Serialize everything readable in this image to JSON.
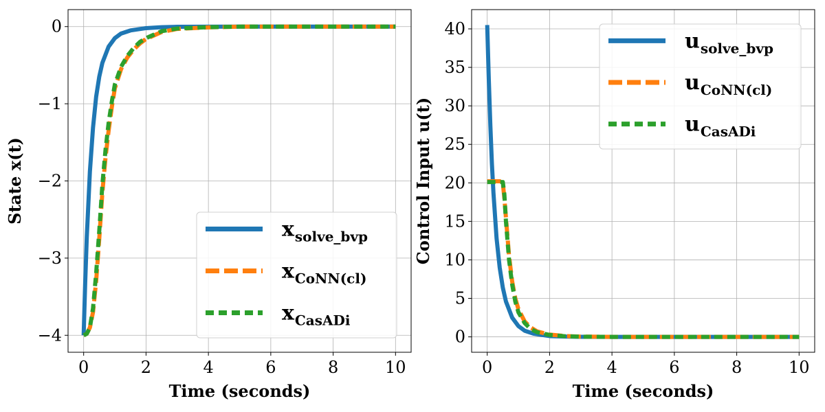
{
  "chart_data": [
    {
      "type": "line",
      "title": "",
      "xlabel": "Time (seconds)",
      "ylabel": "State x(t)",
      "xlim": [
        -0.5,
        10.5
      ],
      "ylim": [
        -4.22,
        0.22
      ],
      "xticks": [
        0,
        2,
        4,
        6,
        8,
        10
      ],
      "yticks": [
        0,
        -1,
        -2,
        -3,
        -4
      ],
      "xtick_labels": [
        "0",
        "2",
        "4",
        "6",
        "8",
        "10"
      ],
      "ytick_labels": [
        "0",
        "−1",
        "−2",
        "−3",
        "−4"
      ],
      "grid": true,
      "legend_location": "lower-right",
      "series": [
        {
          "name": "x_solve_bvp",
          "legend_main": "x",
          "legend_sub": "solve_bvp",
          "color": "#1f77b4",
          "style": "solid",
          "x": [
            0,
            0.05,
            0.1,
            0.2,
            0.3,
            0.4,
            0.5,
            0.6,
            0.8,
            1.0,
            1.2,
            1.5,
            2.0,
            2.5,
            3.0,
            4.0,
            5.0,
            10.0
          ],
          "y": [
            -4.0,
            -3.31,
            -2.73,
            -1.88,
            -1.31,
            -0.91,
            -0.65,
            -0.47,
            -0.26,
            -0.15,
            -0.09,
            -0.05,
            -0.02,
            -0.008,
            -0.003,
            -0.001,
            0,
            0
          ]
        },
        {
          "name": "x_CoNN(cl)",
          "legend_main": "x",
          "legend_sub": "CoNN(cl)",
          "color": "#ff7f0e",
          "style": "dashed",
          "x": [
            0,
            0.1,
            0.2,
            0.3,
            0.4,
            0.5,
            0.6,
            0.7,
            0.8,
            0.9,
            1.0,
            1.2,
            1.4,
            1.6,
            1.8,
            2.0,
            2.5,
            3.0,
            4.0,
            5.0,
            10.0
          ],
          "y": [
            -4.0,
            -3.98,
            -3.9,
            -3.7,
            -3.3,
            -2.75,
            -2.15,
            -1.7,
            -1.35,
            -1.05,
            -0.8,
            -0.55,
            -0.4,
            -0.3,
            -0.22,
            -0.16,
            -0.07,
            -0.03,
            -0.01,
            0,
            0
          ]
        },
        {
          "name": "x_CasADi",
          "legend_main": "x",
          "legend_sub": "CasADi",
          "color": "#2ca02c",
          "style": "dotted",
          "x": [
            0,
            0.1,
            0.2,
            0.3,
            0.4,
            0.5,
            0.6,
            0.7,
            0.8,
            0.9,
            1.0,
            1.2,
            1.4,
            1.6,
            1.8,
            2.0,
            2.5,
            3.0,
            4.0,
            5.0,
            10.0
          ],
          "y": [
            -4.0,
            -3.98,
            -3.9,
            -3.65,
            -3.2,
            -2.65,
            -2.05,
            -1.6,
            -1.25,
            -0.98,
            -0.75,
            -0.52,
            -0.38,
            -0.28,
            -0.2,
            -0.15,
            -0.06,
            -0.025,
            -0.008,
            0,
            0
          ]
        }
      ]
    },
    {
      "type": "line",
      "title": "",
      "xlabel": "Time (seconds)",
      "ylabel": "Control Input u(t)",
      "xlim": [
        -0.5,
        10.5
      ],
      "ylim": [
        -2.0,
        42.5
      ],
      "xticks": [
        0,
        2,
        4,
        6,
        8,
        10
      ],
      "yticks": [
        0,
        5,
        10,
        15,
        20,
        25,
        30,
        35,
        40
      ],
      "xtick_labels": [
        "0",
        "2",
        "4",
        "6",
        "8",
        "10"
      ],
      "ytick_labels": [
        "0",
        "5",
        "10",
        "15",
        "20",
        "25",
        "30",
        "35",
        "40"
      ],
      "grid": true,
      "legend_location": "upper-right",
      "series": [
        {
          "name": "u_solve_bvp",
          "legend_main": "u",
          "legend_sub": "solve_bvp",
          "color": "#1f77b4",
          "style": "solid",
          "x": [
            0,
            0.05,
            0.1,
            0.15,
            0.2,
            0.3,
            0.4,
            0.5,
            0.6,
            0.8,
            1.0,
            1.2,
            1.5,
            2.0,
            2.5,
            3.0,
            4.0,
            10.0
          ],
          "y": [
            40.5,
            33.5,
            27.5,
            22.5,
            18.7,
            12.8,
            9.0,
            6.4,
            4.6,
            2.5,
            1.4,
            0.8,
            0.4,
            0.1,
            0.04,
            0.01,
            0,
            0
          ]
        },
        {
          "name": "u_CoNN(cl)",
          "legend_main": "u",
          "legend_sub": "CoNN(cl)",
          "color": "#ff7f0e",
          "style": "dashed",
          "x": [
            0,
            0.1,
            0.2,
            0.3,
            0.4,
            0.45,
            0.5,
            0.55,
            0.6,
            0.7,
            0.8,
            0.9,
            1.0,
            1.2,
            1.4,
            1.6,
            2.0,
            2.5,
            3.0,
            4.0,
            10.0
          ],
          "y": [
            20.2,
            20.2,
            20.2,
            20.2,
            20.2,
            20.2,
            20.0,
            18.0,
            15.5,
            10.5,
            7.2,
            5.0,
            3.6,
            2.0,
            1.2,
            0.7,
            0.3,
            0.1,
            0.03,
            0,
            0
          ]
        },
        {
          "name": "u_CasADi",
          "legend_main": "u",
          "legend_sub": "CasADi",
          "color": "#2ca02c",
          "style": "dotted",
          "x": [
            0,
            0.1,
            0.2,
            0.3,
            0.4,
            0.5,
            0.55,
            0.6,
            0.7,
            0.8,
            0.9,
            1.0,
            1.2,
            1.4,
            1.6,
            2.0,
            2.5,
            3.0,
            4.0,
            10.0
          ],
          "y": [
            20.1,
            20.1,
            20.1,
            20.1,
            20.1,
            20.1,
            18.5,
            15.0,
            10.0,
            6.8,
            4.6,
            3.2,
            1.8,
            1.0,
            0.6,
            0.25,
            0.08,
            0.02,
            0,
            0
          ]
        }
      ]
    }
  ]
}
